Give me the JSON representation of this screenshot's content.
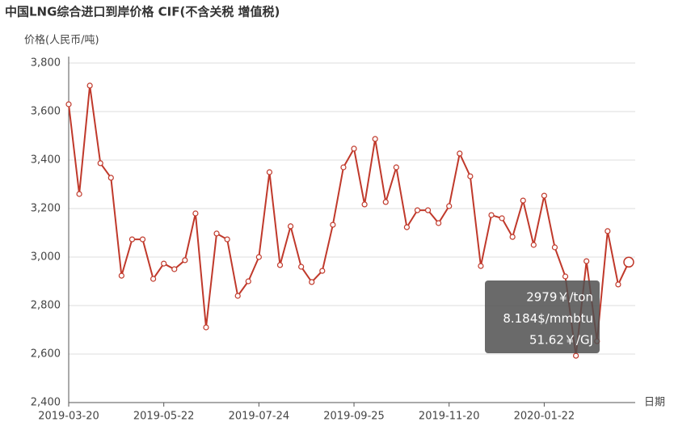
{
  "chart_data": {
    "type": "line",
    "title": "中国LNG综合进口到岸价格  CIF(不含关税  增值税)",
    "y_label": "价格(人民币/吨)",
    "x_label": "日期",
    "categories": [
      "2019-03-20",
      null,
      null,
      null,
      null,
      null,
      null,
      null,
      null,
      "2019-05-22",
      null,
      null,
      null,
      null,
      null,
      null,
      null,
      null,
      "2019-07-24",
      null,
      null,
      null,
      null,
      null,
      null,
      null,
      null,
      "2019-09-25",
      null,
      null,
      null,
      null,
      null,
      null,
      null,
      null,
      "2019-11-20",
      null,
      null,
      null,
      null,
      null,
      null,
      null,
      null,
      "2020-01-22",
      null,
      null,
      null,
      null,
      null,
      null,
      null,
      null
    ],
    "series": [
      {
        "name": "价格",
        "color": "#c0392b",
        "values": [
          3630,
          3260,
          3707,
          3387,
          3327,
          2923,
          3073,
          3073,
          2910,
          2973,
          2950,
          2987,
          3180,
          2710,
          3097,
          3073,
          2840,
          2900,
          3000,
          3350,
          2967,
          3127,
          2960,
          2897,
          2943,
          3133,
          3370,
          3447,
          3217,
          3487,
          3227,
          3370,
          3123,
          3193,
          3193,
          3140,
          3210,
          3427,
          3333,
          2963,
          3173,
          3160,
          3083,
          3233,
          3050,
          3253,
          3040,
          2920,
          2593,
          2983,
          2653,
          3107,
          2887,
          2979
        ]
      }
    ],
    "ylim": [
      2400,
      3800
    ],
    "yticks": [
      {
        "value": 2400,
        "label": "2,400"
      },
      {
        "value": 2600,
        "label": "2,600"
      },
      {
        "value": 2800,
        "label": "2,800"
      },
      {
        "value": 3000,
        "label": "3,000"
      },
      {
        "value": 3200,
        "label": "3,200"
      },
      {
        "value": 3400,
        "label": "3,400"
      },
      {
        "value": 3600,
        "label": "3,600"
      },
      {
        "value": 3800,
        "label": "3,800"
      }
    ],
    "grid": true,
    "tooltip": [
      "2979￥/ton",
      "8.184$/mmbtu",
      "51.62￥/GJ"
    ]
  }
}
